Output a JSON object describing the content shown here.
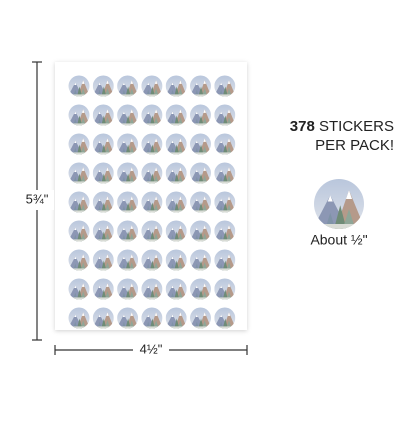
{
  "sheet": {
    "height_label": "5¾\"",
    "width_label": "4½\""
  },
  "promo": {
    "count": "378",
    "line1": "STICKERS",
    "line2": "PER PACK!"
  },
  "sample": {
    "size_label": "About ½\""
  }
}
